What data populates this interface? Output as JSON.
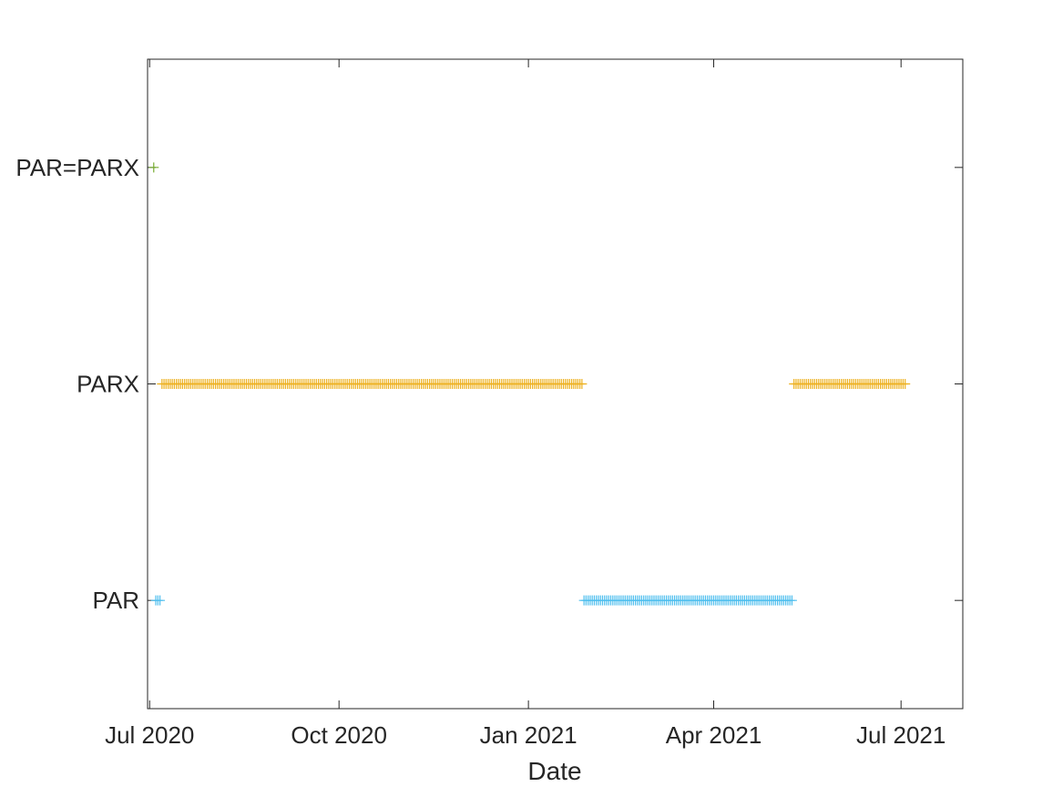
{
  "chart_data": {
    "type": "scatter",
    "title": "",
    "xlabel": "Date",
    "ylabel": "",
    "xlim": [
      "2020-06-30",
      "2021-07-31"
    ],
    "ylim": [
      0.5,
      3.5
    ],
    "grid": false,
    "legend": "none",
    "marker": "plus",
    "x_ticks": [
      {
        "date": "2020-07-01",
        "label": "Jul 2020"
      },
      {
        "date": "2020-10-01",
        "label": "Oct 2020"
      },
      {
        "date": "2021-01-01",
        "label": "Jan 2021"
      },
      {
        "date": "2021-04-01",
        "label": "Apr 2021"
      },
      {
        "date": "2021-07-01",
        "label": "Jul 2021"
      }
    ],
    "y_categories": [
      {
        "value": 1,
        "label": "PAR"
      },
      {
        "value": 2,
        "label": "PARX"
      },
      {
        "value": 3,
        "label": "PAR=PARX"
      }
    ],
    "series": [
      {
        "category": "PAR=PARX",
        "y": 3,
        "color": "#77AC30",
        "ranges": [
          {
            "start": "2020-07-03",
            "end": "2020-07-03"
          }
        ]
      },
      {
        "category": "PARX",
        "y": 2,
        "color": "#EDB120",
        "ranges": [
          {
            "start": "2020-07-07",
            "end": "2021-01-27"
          },
          {
            "start": "2021-05-10",
            "end": "2021-07-03"
          }
        ]
      },
      {
        "category": "PAR",
        "y": 1,
        "color": "#4DBEEE",
        "ranges": [
          {
            "start": "2020-07-04",
            "end": "2020-07-06"
          },
          {
            "start": "2021-01-28",
            "end": "2021-05-09"
          }
        ]
      }
    ]
  }
}
